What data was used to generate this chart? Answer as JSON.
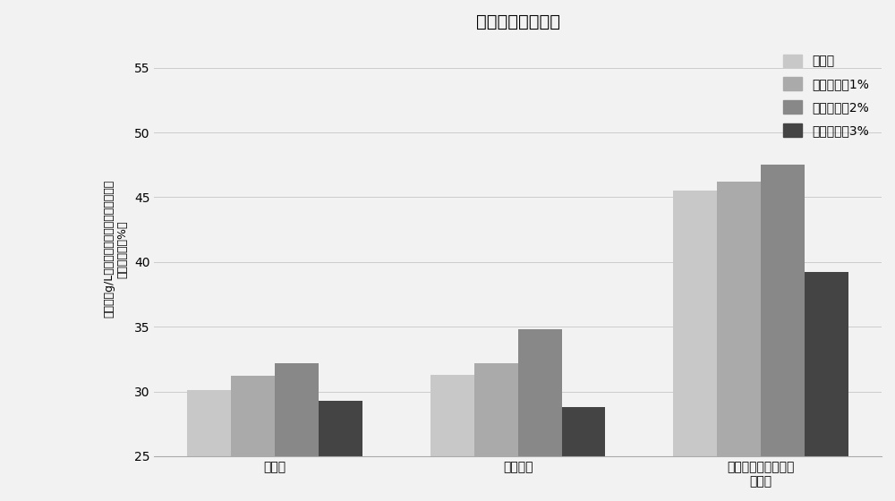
{
  "title": "发酵起始添加油酸",
  "categories": [
    "生物量",
    "油脂含量",
    "花生四烯酸在油脂中\n的含量"
  ],
  "series": {
    "未添加": [
      30.1,
      31.3,
      45.5
    ],
    "油酸添加量1%": [
      31.2,
      32.2,
      46.2
    ],
    "油酸添加量2%": [
      32.2,
      34.8,
      47.5
    ],
    "油酸添加量3%": [
      29.3,
      28.8,
      39.2
    ]
  },
  "colors": [
    "#c8c8c8",
    "#aaaaaa",
    "#888888",
    "#444444"
  ],
  "ylabel_lines": [
    "生物量（g/L）、油脂含量及花生四烯酸在油",
    "脂中的含量（%）"
  ],
  "ylim": [
    25,
    57
  ],
  "yticks": [
    25,
    30,
    35,
    40,
    45,
    50,
    55
  ],
  "legend_labels": [
    "未添加",
    "油酸添加量1%",
    "油酸添加量2%",
    "油酸添加量3%"
  ],
  "bar_width": 0.18,
  "bg_color": "#f2f2f2",
  "plot_bg_color": "#f2f2f2",
  "title_fontsize": 14,
  "label_fontsize": 9,
  "tick_fontsize": 10,
  "legend_fontsize": 10
}
